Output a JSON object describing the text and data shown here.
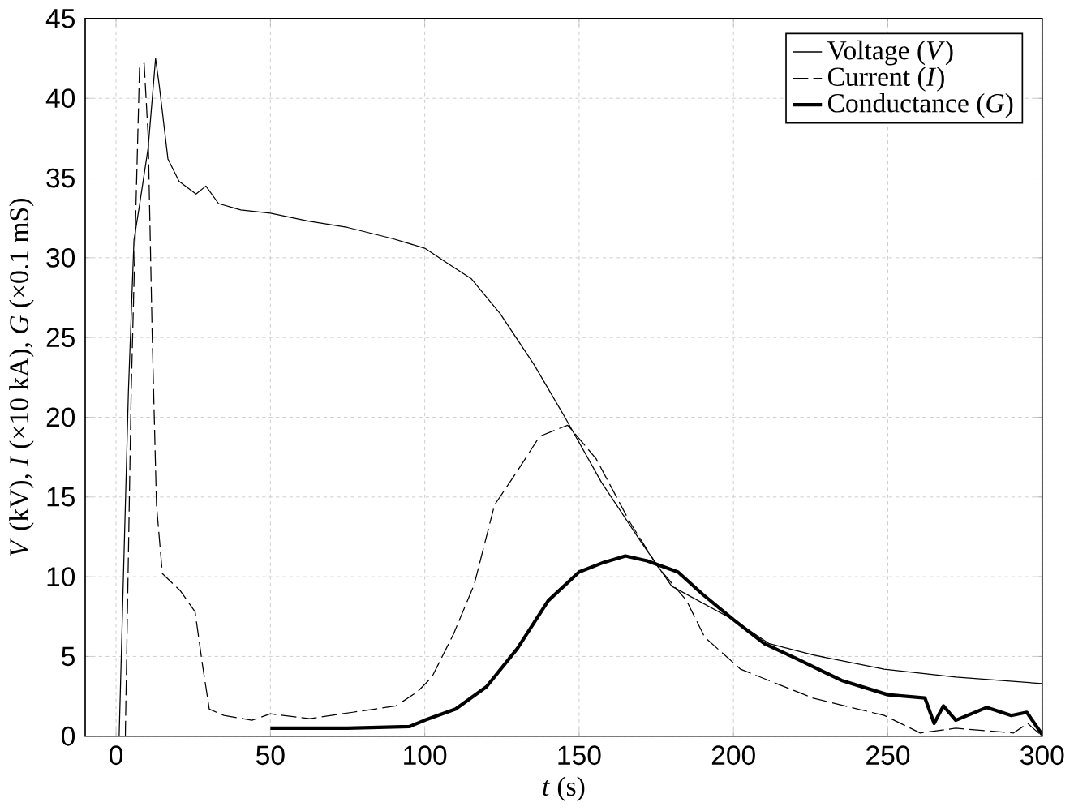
{
  "chart_data": {
    "type": "line",
    "xlabel": "*t* (s)",
    "ylabel": "*V* (kV), *I* (×10 kA), *G* (×0.1 mS)",
    "xlim": [
      -10,
      300
    ],
    "ylim": [
      0,
      45
    ],
    "xticks": [
      0,
      50,
      100,
      150,
      200,
      250,
      300
    ],
    "yticks": [
      0,
      5,
      10,
      15,
      20,
      25,
      30,
      35,
      40,
      45
    ],
    "grid": true,
    "legend": "top right",
    "marker": "none",
    "series": [
      {
        "name": "Voltage (*V*)",
        "color": "#000000",
        "line_style": "solid",
        "x": [
          1,
          4,
          5.8,
          7.6,
          10.4,
          12.8,
          14,
          16.8,
          20.4,
          25.9,
          29.1,
          33.2,
          40.4,
          50,
          62.3,
          75,
          89.6,
          100,
          107.8,
          115,
          124.4,
          135.4,
          145.4,
          157.3,
          170,
          180,
          200,
          211.6,
          225.6,
          248.8,
          272,
          300
        ],
        "values": [
          0,
          21.6,
          31.1,
          33.3,
          36.9,
          42.5,
          40.8,
          36.2,
          34.8,
          34.0,
          34.5,
          33.4,
          33.0,
          32.8,
          32.3,
          31.9,
          31.2,
          30.6,
          29.6,
          28.7,
          26.5,
          23.3,
          20.0,
          15.9,
          12.2,
          9.4,
          7.3,
          5.8,
          5.1,
          4.2,
          3.7,
          3.3
        ]
      },
      {
        "name": "Current (*I*)",
        "color": "#000000",
        "line_style": "dashed",
        "x": [
          3,
          4.9,
          7.6,
          9.1,
          10.4,
          11.7,
          13.1,
          15,
          20.9,
          25.6,
          27.9,
          30.2,
          34.9,
          44,
          50,
          62.8,
          76.7,
          90.7,
          97.7,
          102.3,
          109.3,
          116,
          122.6,
          129.9,
          137.2,
          143.6,
          146.3,
          155.5,
          166.5,
          175.6,
          184.8,
          190.7,
          202.3,
          225.6,
          248.8,
          260.5,
          272,
          290.7,
          295.3,
          300
        ],
        "values": [
          0,
          21.6,
          41.9,
          42.2,
          37.6,
          25.2,
          14.5,
          10.2,
          9.1,
          7.8,
          4.6,
          1.7,
          1.3,
          1.0,
          1.4,
          1.1,
          1.5,
          1.9,
          2.8,
          3.7,
          6.4,
          9.5,
          14.5,
          16.6,
          18.8,
          19.3,
          19.5,
          17.4,
          13.4,
          10.6,
          8.5,
          6.2,
          4.2,
          2.4,
          1.3,
          0.2,
          0.5,
          0.2,
          0.8,
          0
        ]
      },
      {
        "name": "Conductance (*G*)",
        "color": "#000000",
        "line_style": "solid",
        "x": [
          50,
          75,
          95,
          100,
          110,
          120,
          130,
          140,
          150,
          158,
          165,
          172,
          182,
          190,
          200,
          210,
          220,
          235,
          250,
          262,
          265,
          268,
          272,
          282,
          290,
          295,
          300
        ],
        "values": [
          0.5,
          0.5,
          0.6,
          1.0,
          1.7,
          3.1,
          5.5,
          8.5,
          10.3,
          10.9,
          11.3,
          11.0,
          10.3,
          8.9,
          7.3,
          5.8,
          4.9,
          3.5,
          2.6,
          2.4,
          0.8,
          1.9,
          1.0,
          1.8,
          1.3,
          1.5,
          0.1
        ]
      }
    ]
  }
}
